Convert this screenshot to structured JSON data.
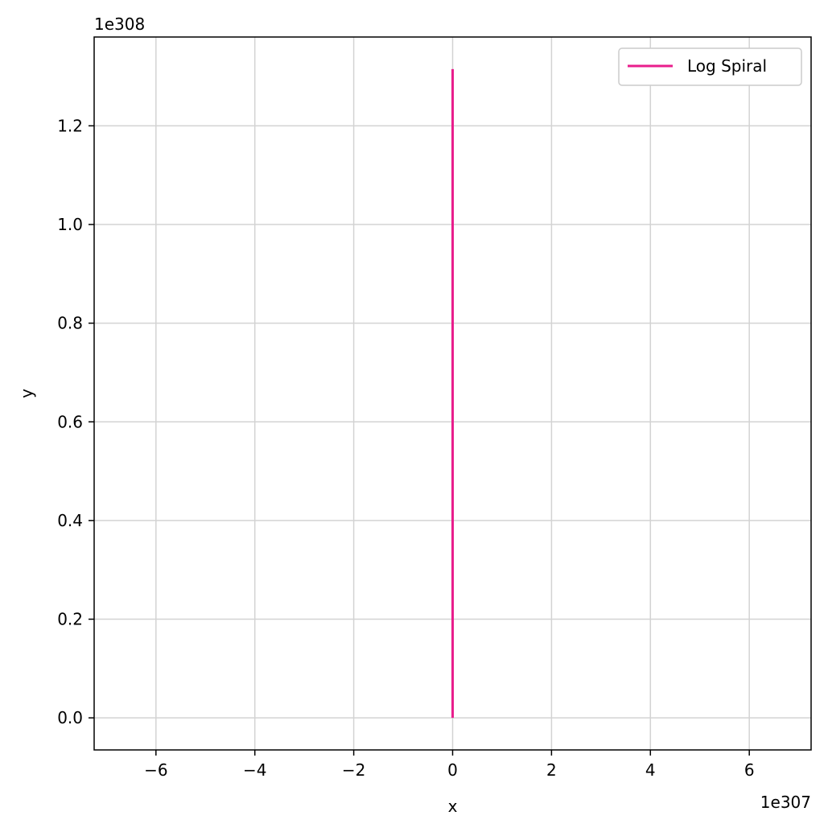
{
  "chart_data": {
    "type": "line",
    "title": "",
    "xlabel": "x",
    "ylabel": "y",
    "x_offset_label": "1e307",
    "y_offset_label": "1e308",
    "x_scale_exponent": 307,
    "y_scale_exponent": 308,
    "xlim": [
      -7.25,
      7.25
    ],
    "ylim": [
      -0.065,
      1.38
    ],
    "xticks": [
      -6,
      -4,
      -2,
      0,
      2,
      4,
      6
    ],
    "xtick_labels": [
      "−6",
      "−4",
      "−2",
      "0",
      "2",
      "4",
      "6"
    ],
    "yticks": [
      0.0,
      0.2,
      0.4,
      0.6,
      0.8,
      1.0,
      1.2
    ],
    "ytick_labels": [
      "0.0",
      "0.2",
      "0.4",
      "0.6",
      "0.8",
      "1.0",
      "1.2"
    ],
    "grid": true,
    "legend_position": "top-right",
    "series": [
      {
        "name": "Log Spiral",
        "color": "#e91e8c",
        "x": [
          0,
          0
        ],
        "y": [
          0.0,
          1.315
        ]
      }
    ]
  }
}
